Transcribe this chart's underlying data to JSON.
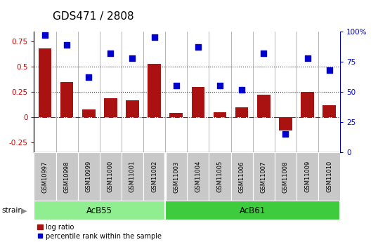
{
  "title": "GDS471 / 2808",
  "samples": [
    "GSM10997",
    "GSM10998",
    "GSM10999",
    "GSM11000",
    "GSM11001",
    "GSM11002",
    "GSM11003",
    "GSM11004",
    "GSM11005",
    "GSM11006",
    "GSM11007",
    "GSM11008",
    "GSM11009",
    "GSM11010"
  ],
  "log_ratio": [
    0.68,
    0.35,
    0.08,
    0.19,
    0.17,
    0.53,
    0.04,
    0.3,
    0.05,
    0.1,
    0.22,
    -0.13,
    0.25,
    0.12
  ],
  "percentile": [
    97,
    89,
    62,
    82,
    78,
    95,
    55,
    87,
    55,
    52,
    82,
    15,
    78,
    68
  ],
  "groups": [
    {
      "label": "AcB55",
      "start": 0,
      "end": 6,
      "color": "#90EE90"
    },
    {
      "label": "AcB61",
      "start": 6,
      "end": 14,
      "color": "#3ECC3E"
    }
  ],
  "ylim_left": [
    -0.35,
    0.85
  ],
  "ylim_right": [
    0,
    100
  ],
  "yticks_left": [
    -0.25,
    0.0,
    0.25,
    0.5,
    0.75
  ],
  "ytick_left_labels": [
    "-0.25",
    "0",
    "0.25",
    "0.5",
    "0.75"
  ],
  "yticks_right": [
    0,
    25,
    50,
    75,
    100
  ],
  "ytick_right_labels": [
    "0",
    "25",
    "50",
    "75",
    "100%"
  ],
  "hlines": [
    0.0,
    0.25,
    0.5
  ],
  "hline_styles": [
    "dashdot",
    "dotted",
    "dotted"
  ],
  "hline_colors": [
    "#CC0000",
    "#333333",
    "#333333"
  ],
  "bar_color": "#AA1111",
  "dot_color": "#0000CC",
  "bar_width": 0.6,
  "sample_bg_color": "#C8C8C8",
  "strain_label": "strain",
  "legend_bar_label": "log ratio",
  "legend_dot_label": "percentile rank within the sample",
  "title_fontsize": 11,
  "tick_fontsize": 7.5
}
